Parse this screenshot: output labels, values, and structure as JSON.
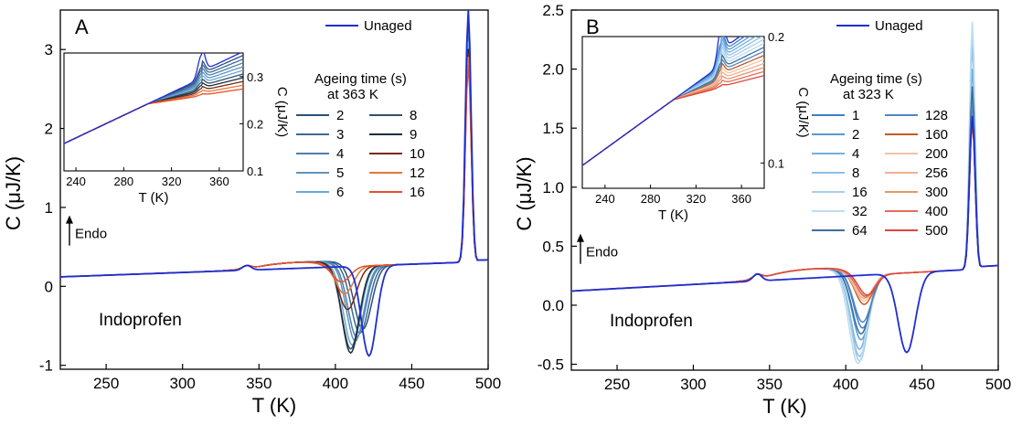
{
  "chart_data": [
    {
      "type": "line",
      "panel": "A",
      "xlabel": "T (K)",
      "ylabel": "C (μJ/K)",
      "xlim": [
        220,
        500
      ],
      "ylim": [
        -1.05,
        3.5
      ],
      "xticks": [
        250,
        300,
        350,
        400,
        450,
        500
      ],
      "yticks": [
        -1,
        0,
        1,
        2,
        3
      ],
      "grid": false,
      "legend_title": [
        "Ageing time (s)",
        "at 363 K"
      ],
      "legend_placement": "top-right",
      "annotations": {
        "sample": "Indoprofen",
        "endo": "Endo"
      },
      "series": [
        {
          "name": "Unaged",
          "color": "#1f2ecf",
          "dip_T": 422,
          "dip_C": -0.88,
          "peak_C": 3.5
        },
        {
          "name": "2",
          "color": "#2c4f7c",
          "dip_T": 418,
          "dip_C": -0.55,
          "peak_C": 3.3
        },
        {
          "name": "3",
          "color": "#3b6a95",
          "dip_T": 416,
          "dip_C": -0.6,
          "peak_C": 3.2
        },
        {
          "name": "4",
          "color": "#4f7fab",
          "dip_T": 414,
          "dip_C": -0.65,
          "peak_C": 3.2
        },
        {
          "name": "5",
          "color": "#5f94c0",
          "dip_T": 413,
          "dip_C": -0.7,
          "peak_C": 3.1
        },
        {
          "name": "6",
          "color": "#6aa8d8",
          "dip_T": 411,
          "dip_C": -0.75,
          "peak_C": 3.1
        },
        {
          "name": "8",
          "color": "#35506b",
          "dip_T": 410,
          "dip_C": -0.8,
          "peak_C": 3.0
        },
        {
          "name": "9",
          "color": "#1c2e3f",
          "dip_T": 410,
          "dip_C": -0.85,
          "peak_C": 3.0
        },
        {
          "name": "10",
          "color": "#7a2a14",
          "dip_T": 408,
          "dip_C": -0.3,
          "peak_C": 2.95
        },
        {
          "name": "12",
          "color": "#e07a3a",
          "dip_T": 406,
          "dip_C": -0.1,
          "peak_C": 2.9
        },
        {
          "name": "16",
          "color": "#e8502a",
          "dip_T": 404,
          "dip_C": 0.05,
          "peak_C": 2.8
        }
      ],
      "inset": {
        "xlabel": "T (K)",
        "ylabel": "C (μJ/K)",
        "xlim": [
          230,
          380
        ],
        "ylim": [
          0.1,
          0.35
        ],
        "xticks": [
          240,
          280,
          320,
          360
        ],
        "yticks": [
          0.1,
          0.2,
          0.3
        ]
      }
    },
    {
      "type": "line",
      "panel": "B",
      "xlabel": "T (K)",
      "ylabel": "C (μJ/K)",
      "xlim": [
        220,
        500
      ],
      "ylim": [
        -0.55,
        2.5
      ],
      "xticks": [
        250,
        300,
        350,
        400,
        450,
        500
      ],
      "yticks": [
        -0.5,
        0.0,
        0.5,
        1.0,
        1.5,
        2.0,
        2.5
      ],
      "ytick_labels": [
        "-0.5",
        "0.0",
        "0.5",
        "1.0",
        "1.5",
        "2.0",
        "2.5"
      ],
      "grid": false,
      "legend_title": [
        "Ageing time (s)",
        "at 323 K"
      ],
      "legend_placement": "top-right",
      "annotations": {
        "sample": "Indoprofen",
        "endo": "Endo"
      },
      "series": [
        {
          "name": "Unaged",
          "color": "#1f2ecf",
          "dip_T": 440,
          "dip_C": -0.4,
          "peak_C": 1.6
        },
        {
          "name": "1",
          "color": "#3d7fc9",
          "dip_T": 411,
          "dip_C": -0.2,
          "peak_C": 1.75
        },
        {
          "name": "2",
          "color": "#5b9ad4",
          "dip_T": 410,
          "dip_C": -0.3,
          "peak_C": 1.85
        },
        {
          "name": "4",
          "color": "#73b0de",
          "dip_T": 409,
          "dip_C": -0.38,
          "peak_C": 2.0
        },
        {
          "name": "8",
          "color": "#8cc0e6",
          "dip_T": 409,
          "dip_C": -0.44,
          "peak_C": 2.2
        },
        {
          "name": "16",
          "color": "#a5cfec",
          "dip_T": 409,
          "dip_C": -0.48,
          "peak_C": 2.35
        },
        {
          "name": "32",
          "color": "#bcdcf0",
          "dip_T": 408,
          "dip_C": -0.5,
          "peak_C": 2.4
        },
        {
          "name": "64",
          "color": "#3d6f9e",
          "dip_T": 410,
          "dip_C": -0.25,
          "peak_C": 1.85
        },
        {
          "name": "128",
          "color": "#4d86c2",
          "dip_T": 411,
          "dip_C": -0.15,
          "peak_C": 1.7
        },
        {
          "name": "160",
          "color": "#c25a24",
          "dip_T": 412,
          "dip_C": 0.0,
          "peak_C": 1.6
        },
        {
          "name": "200",
          "color": "#f0c2a8",
          "dip_T": 412,
          "dip_C": 0.03,
          "peak_C": 1.55
        },
        {
          "name": "256",
          "color": "#f0b08e",
          "dip_T": 412,
          "dip_C": 0.05,
          "peak_C": 1.55
        },
        {
          "name": "300",
          "color": "#e8946a",
          "dip_T": 413,
          "dip_C": 0.06,
          "peak_C": 1.55
        },
        {
          "name": "400",
          "color": "#e56d5a",
          "dip_T": 413,
          "dip_C": 0.07,
          "peak_C": 1.55
        },
        {
          "name": "500",
          "color": "#e0453a",
          "dip_T": 414,
          "dip_C": 0.08,
          "peak_C": 1.55
        }
      ],
      "inset": {
        "xlabel": "T (K)",
        "ylabel": "C (μJ/K)",
        "xlim": [
          220,
          380
        ],
        "ylim": [
          0.08,
          0.2
        ],
        "xticks": [
          240,
          280,
          320,
          360
        ],
        "yticks": [
          0.1,
          0.2
        ]
      }
    }
  ]
}
